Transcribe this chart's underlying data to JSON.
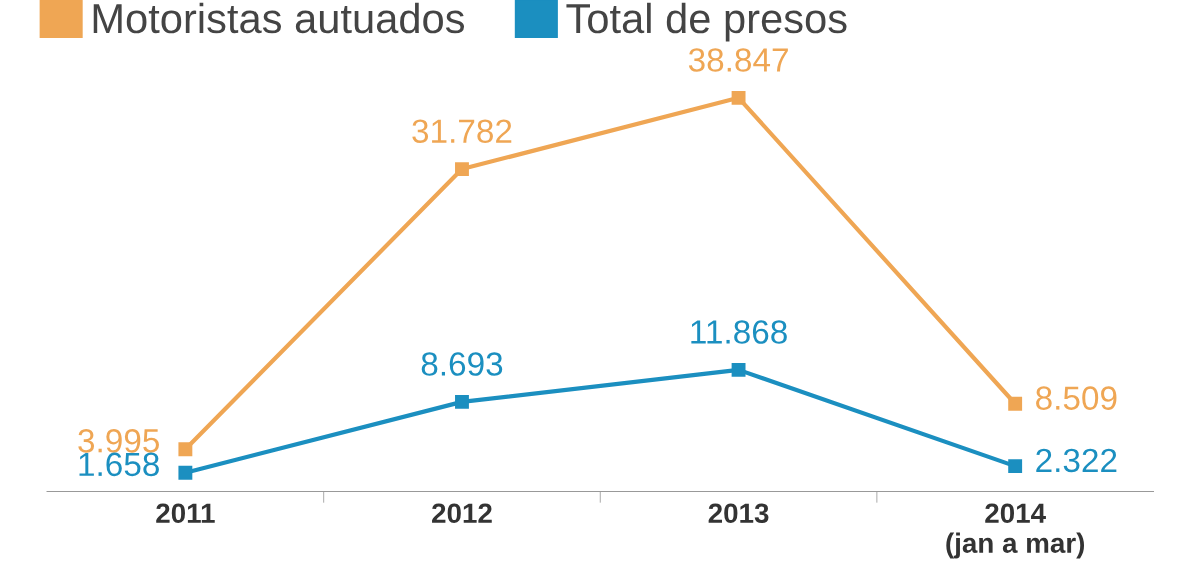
{
  "chart_data": {
    "type": "line",
    "categories": [
      "2011",
      "2012",
      "2013",
      "2014\n(jan a mar)"
    ],
    "series": [
      {
        "name": "Motoristas autuados",
        "color": "#efa654",
        "values": [
          3995,
          31782,
          38847,
          8509
        ],
        "value_labels": [
          "3.995",
          "31.782",
          "38.847",
          "8.509"
        ]
      },
      {
        "name": "Total de presos",
        "color": "#1b8fc0",
        "values": [
          1658,
          8693,
          11868,
          2322
        ],
        "value_labels": [
          "1.658",
          "8.693",
          "11.868",
          "2.322"
        ]
      }
    ],
    "marker": "square",
    "line_style": "solid",
    "legend": "top left",
    "grid": false
  }
}
